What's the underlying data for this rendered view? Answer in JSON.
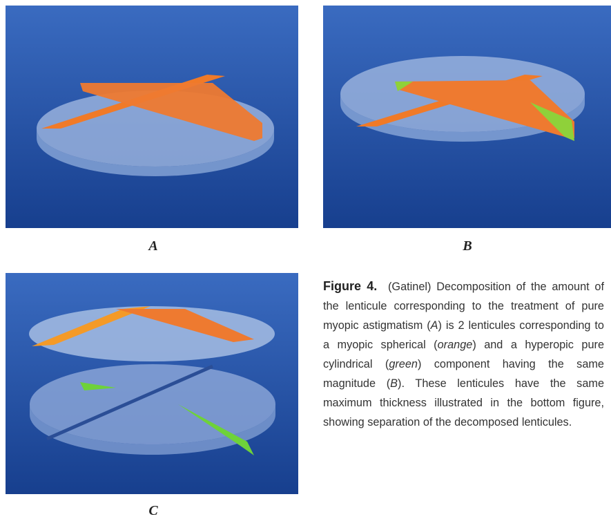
{
  "panels": [
    {
      "label": "A"
    },
    {
      "label": "B"
    },
    {
      "label": "C"
    }
  ],
  "caption": {
    "label": "Figure 4.",
    "segments": [
      {
        "text": "(Gatinel) Decomposition of the amount of the lenticule corresponding to the treatment of pure myopic astigmatism ("
      },
      {
        "text": "A",
        "italic": true
      },
      {
        "text": ") is 2 lenticules corresponding to a myopic spherical ("
      },
      {
        "text": "orange",
        "italic": true
      },
      {
        "text": ") and a hyperopic pure cylindrical ("
      },
      {
        "text": "green",
        "italic": true
      },
      {
        "text": ") component having the same magnitude ("
      },
      {
        "text": "B",
        "italic": true
      },
      {
        "text": "). These lenticules have the same maximum thickness illustrated in the bottom figure, showing separation of the decomposed lenticules."
      }
    ]
  }
}
